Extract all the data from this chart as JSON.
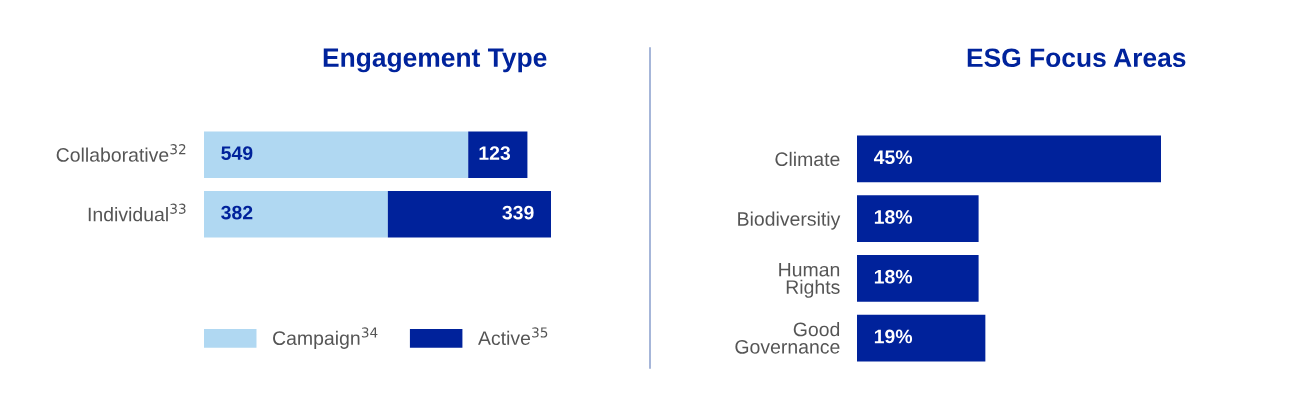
{
  "chart_data": [
    {
      "type": "bar",
      "orientation": "horizontal",
      "stacked": true,
      "title": "Engagement Type",
      "categories": [
        "Collaborative$^{32}$",
        "Individual$^{33}$"
      ],
      "series": [
        {
          "name": "Campaign$^{34}$",
          "color": "#b0d8f2",
          "values": [
            549,
            382
          ]
        },
        {
          "name": "Active$^{35}$",
          "color": "#00229b",
          "values": [
            123,
            339
          ]
        }
      ],
      "data_labels": true,
      "legend": "bottom",
      "tick_labels": "y"
    },
    {
      "type": "bar",
      "orientation": "horizontal",
      "title": "ESG Focus Areas",
      "categories": [
        "Climate",
        "Biodiversitiy",
        "Human\nRights",
        "Good\nGovernance"
      ],
      "values": [
        45,
        18,
        18,
        19
      ],
      "color": "#00229b",
      "value_labels": [
        "45%",
        "18%",
        "18%",
        "19%"
      ],
      "tick_labels": "y"
    }
  ]
}
